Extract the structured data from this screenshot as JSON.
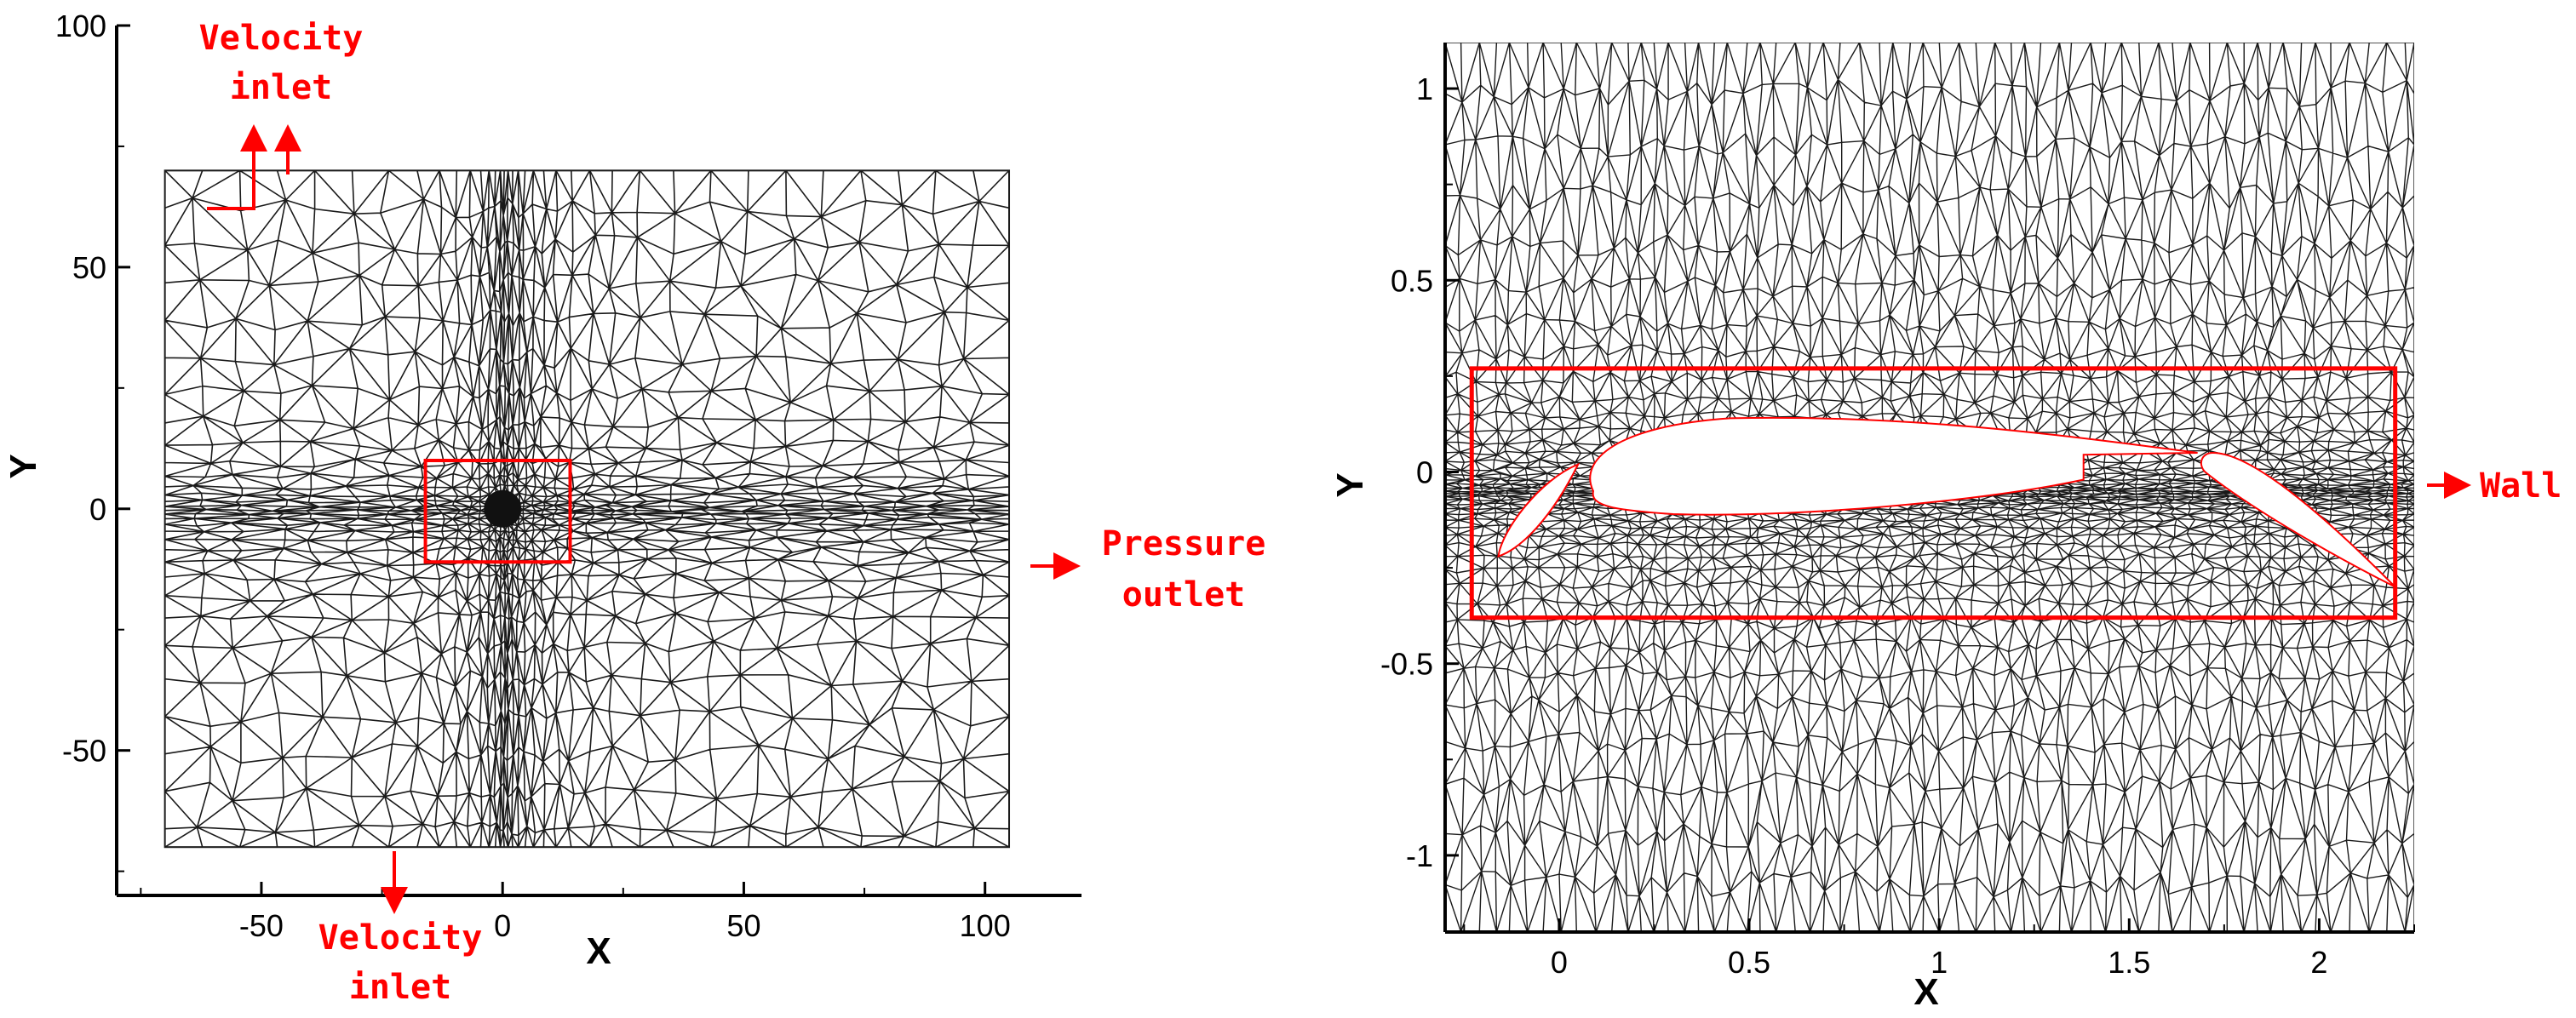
{
  "left_panel": {
    "x_axis_title": "X",
    "y_axis_title": "Y",
    "x_ticks": [
      "-50",
      "0",
      "50",
      "100"
    ],
    "y_ticks": [
      "100",
      "50",
      "0",
      "-50"
    ],
    "x_tick_values": [
      -50,
      0,
      50,
      100
    ],
    "y_tick_values": [
      100,
      50,
      0,
      -50
    ],
    "x_range": [
      -80,
      120
    ],
    "y_range": [
      -80,
      100
    ],
    "domain": {
      "x": [
        -70,
        105
      ],
      "y": [
        -70,
        70
      ]
    },
    "refinement_box": {
      "x": [
        -16,
        14
      ],
      "y": [
        -11,
        10
      ]
    },
    "labels": {
      "top_inlet": [
        "Velocity",
        "inlet"
      ],
      "bottom_inlet": [
        "Velocity",
        "inlet"
      ],
      "outlet": [
        "Pressure",
        "outlet"
      ]
    }
  },
  "right_panel": {
    "x_axis_title": "X",
    "y_axis_title": "Y",
    "x_ticks": [
      "0",
      "0.5",
      "1",
      "1.5",
      "2"
    ],
    "y_ticks": [
      "1",
      "0.5",
      "0",
      "-0.5",
      "-1"
    ],
    "x_tick_values": [
      0,
      0.5,
      1,
      1.5,
      2
    ],
    "y_tick_values": [
      1,
      0.5,
      0,
      -0.5,
      -1
    ],
    "x_range": [
      -0.3,
      2.25
    ],
    "y_range": [
      -1.2,
      1.12
    ],
    "highlight_box": {
      "x": [
        -0.23,
        2.2
      ],
      "y": [
        -0.38,
        0.27
      ]
    },
    "labels": {
      "wall": "Wall"
    }
  },
  "colors": {
    "mesh": "#1a1a1a",
    "annotation": "#ff0000",
    "axis": "#000000"
  }
}
